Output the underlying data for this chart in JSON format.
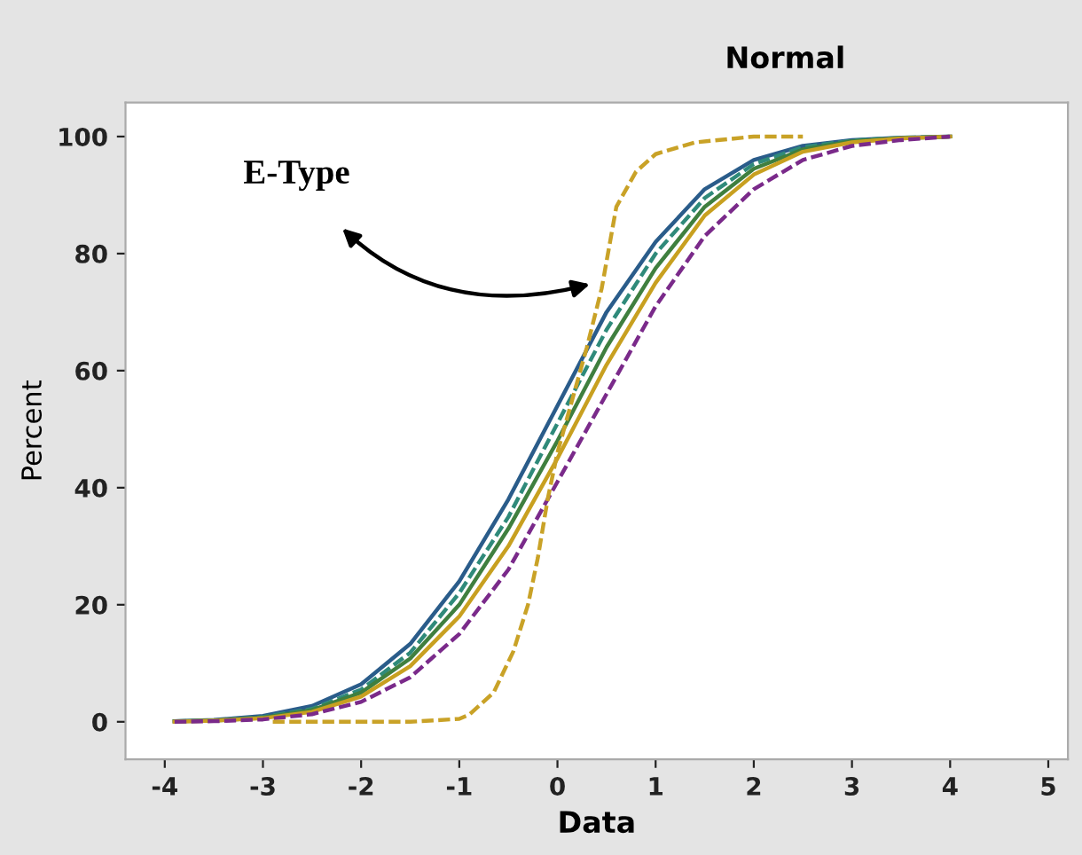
{
  "chart_data": {
    "type": "line",
    "title": "Normal",
    "xlabel": "Data",
    "ylabel": "Percent",
    "x": [
      -3.9,
      -3.5,
      -3,
      -2.5,
      -2,
      -1.5,
      -1,
      -0.5,
      0,
      0.5,
      1,
      1.5,
      2,
      2.5,
      3,
      3.5,
      4
    ],
    "series": [
      {
        "color": "#2a5c8a",
        "line_style": "solid",
        "values": [
          0.1,
          0.3,
          1.0,
          2.7,
          6.4,
          13.3,
          24,
          38,
          54,
          70,
          82,
          91,
          96,
          98.4,
          99.4,
          99.8,
          100
        ]
      },
      {
        "color": "#2f8a7a",
        "line_style": "dashed",
        "values": [
          0.1,
          0.2,
          0.8,
          2.2,
          5.5,
          11.8,
          22,
          35,
          51,
          67,
          80,
          89.5,
          95.3,
          98.2,
          99.3,
          99.8,
          100
        ]
      },
      {
        "color": "#3f7f3f",
        "line_style": "solid",
        "values": [
          0.1,
          0.2,
          0.7,
          2.0,
          5.0,
          10.8,
          20,
          33,
          48,
          64,
          77.5,
          88,
          94.5,
          97.8,
          99.2,
          99.7,
          100
        ]
      },
      {
        "color": "#c8a020",
        "line_style": "solid",
        "values": [
          0,
          0.2,
          0.6,
          1.7,
          4.3,
          9.5,
          18,
          30,
          45,
          61,
          75,
          86.5,
          93.5,
          97.4,
          99,
          99.7,
          100
        ]
      },
      {
        "color": "#7a2a8a",
        "line_style": "dashed",
        "values": [
          0,
          0.1,
          0.4,
          1.3,
          3.4,
          7.6,
          15,
          26,
          41,
          56,
          71,
          83,
          91,
          96,
          98.4,
          99.4,
          100
        ]
      },
      {
        "color": "#c9a227",
        "line_style": "dashed",
        "x": [
          -2.9,
          -2,
          -1.5,
          -1,
          -0.9,
          -0.65,
          -0.45,
          -0.3,
          -0.2,
          -0.1,
          0,
          0.1,
          0.2,
          0.3,
          0.45,
          0.6,
          0.8,
          1.0,
          1.4,
          2.0,
          2.5
        ],
        "values": [
          0,
          0,
          0,
          0.5,
          1.2,
          5,
          12,
          20,
          28,
          38,
          46,
          52,
          58,
          64,
          74,
          88,
          94,
          97,
          99,
          100,
          100
        ]
      }
    ],
    "annotations": [
      {
        "text": "E-Type",
        "x": 0.38,
        "y": 75
      }
    ],
    "xlim": [
      -4.4,
      5.2
    ],
    "xticks": [
      -4,
      -3,
      -2,
      -1,
      0,
      1,
      2,
      3,
      4,
      5
    ],
    "ylim": [
      -6.4,
      105.8
    ],
    "yticks": [
      0,
      20,
      40,
      60,
      80,
      100
    ],
    "grid": false,
    "legend": false,
    "marker": "none"
  }
}
